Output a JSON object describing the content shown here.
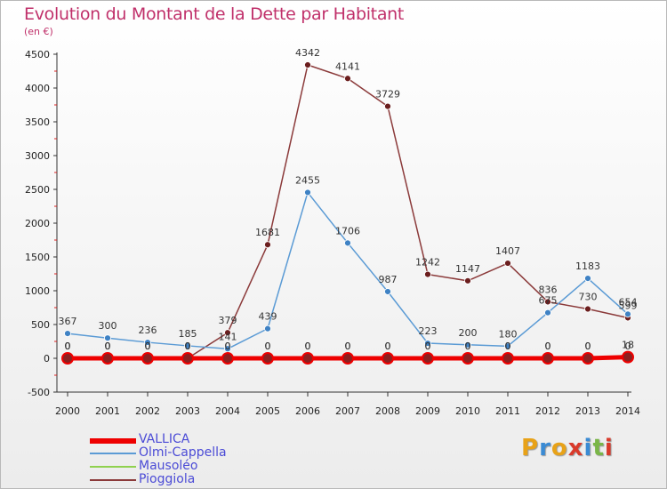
{
  "title": "Evolution du Montant de la Dette par Habitant",
  "unit_label": "(en €)",
  "logo": {
    "letters": [
      "P",
      "r",
      "o",
      "x",
      "i",
      "t",
      "i"
    ],
    "colors": [
      "#e8a218",
      "#3a8bd4",
      "#e8a218",
      "#d93a2b",
      "#3a8bd4",
      "#7ab648",
      "#d93a2b"
    ]
  },
  "chart_data": {
    "type": "line",
    "title": "Evolution du Montant de la Dette par Habitant",
    "ylabel": "(en €)",
    "xlabel": "",
    "x": [
      "2000",
      "2001",
      "2002",
      "2003",
      "2004",
      "2005",
      "2006",
      "2007",
      "2008",
      "2009",
      "2010",
      "2011",
      "2012",
      "2013",
      "2014"
    ],
    "ylim": [
      -500,
      4500
    ],
    "yticks": [
      -500,
      0,
      500,
      1000,
      1500,
      2000,
      2500,
      3000,
      3500,
      4000,
      4500
    ],
    "grid": false,
    "legend_position": "bottom-left",
    "series": [
      {
        "name": "VALLICA",
        "color": "#ee0000",
        "values": [
          0,
          0,
          0,
          0,
          0,
          0,
          0,
          0,
          0,
          0,
          0,
          0,
          0,
          0,
          18
        ],
        "labels": [
          "0",
          "0",
          "0",
          "0",
          "0",
          "0",
          "0",
          "0",
          "0",
          "0",
          "0",
          "0",
          "0",
          "0",
          "18"
        ]
      },
      {
        "name": "Olmi-Cappella",
        "color": "#5b9bd5",
        "values": [
          367,
          300,
          236,
          185,
          141,
          439,
          2455,
          1706,
          987,
          223,
          200,
          180,
          675,
          1183,
          654
        ],
        "labels": [
          "367",
          "300",
          "236",
          "185",
          "141",
          "439",
          "2455",
          "1706",
          "987",
          "223",
          "200",
          "180",
          "675",
          "1183",
          "654"
        ]
      },
      {
        "name": "Mausoléo",
        "color": "#8fd14f",
        "values": [
          0,
          0,
          0,
          0,
          0,
          0,
          0,
          0,
          0,
          0,
          0,
          0,
          0,
          0,
          0
        ],
        "labels": [
          "0",
          "0",
          "0",
          "0",
          "0",
          "0",
          "0",
          "0",
          "0",
          "0",
          "0",
          "0",
          "0",
          "0",
          "0"
        ]
      },
      {
        "name": "Pioggiola",
        "color": "#8b3a3a",
        "values": [
          0,
          0,
          0,
          0,
          379,
          1681,
          4342,
          4141,
          3729,
          1242,
          1147,
          1407,
          836,
          730,
          599
        ],
        "labels": [
          "0",
          "0",
          "0",
          "0",
          "379",
          "1681",
          "4342",
          "4141",
          "3729",
          "1242",
          "1147",
          "1407",
          "836",
          "730",
          "599"
        ]
      }
    ]
  }
}
